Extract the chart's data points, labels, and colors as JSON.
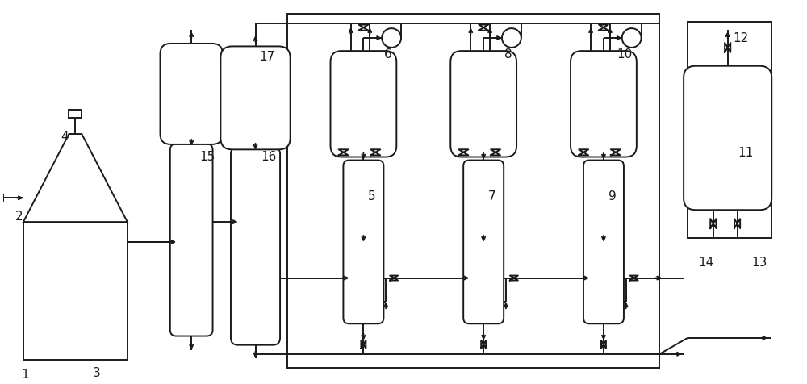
{
  "bg_color": "#ffffff",
  "line_color": "#1a1a1a",
  "lw": 1.4,
  "figsize": [
    10.0,
    4.77
  ],
  "dpi": 100
}
